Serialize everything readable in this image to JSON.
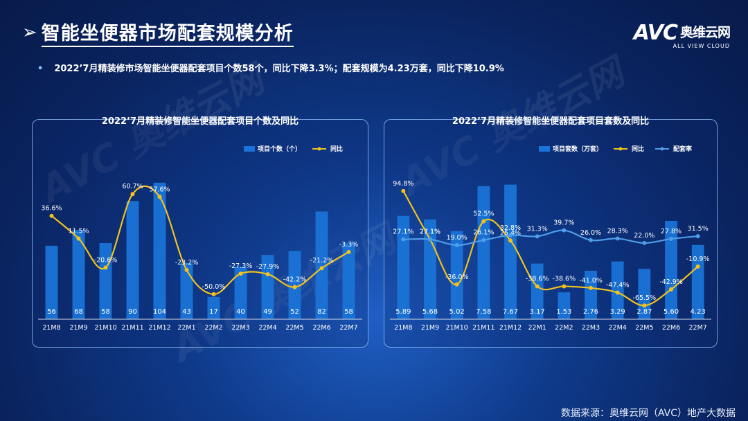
{
  "header": {
    "arrow": "➢",
    "title": "智能坐便器市场配套规模分析",
    "summary": "2022’7月精装修市场智能坐便器配套项目个数58个，同比下降3.3%；配套规模为4.23万套，同比下降10.9%"
  },
  "logo": {
    "main": "AVC",
    "cn": "奥维云网",
    "sub": "ALL VIEW CLOUD"
  },
  "watermark": {
    "main": "AVC 奥维云网",
    "sub": "ALL VIEW CLOUD"
  },
  "footer": {
    "source": "数据来源：奥维云网（AVC）地产大数据"
  },
  "colors": {
    "bar": "#1a73d6",
    "yoy_line": "#f2c21b",
    "ratio_line": "#4f9de8",
    "panel_border": "#96c8ff"
  },
  "chart_data": [
    {
      "type": "bar",
      "title": "2022’7月精装修智能坐便器配套项目个数及同比",
      "categories": [
        "21M8",
        "21M9",
        "21M10",
        "21M11",
        "21M12",
        "22M1",
        "22M2",
        "22M3",
        "22M4",
        "22M5",
        "22M6",
        "22M7"
      ],
      "legend_position": "top-right",
      "series": [
        {
          "name": "项目个数（个）",
          "kind": "bar",
          "values": [
            56,
            68,
            58,
            90,
            104,
            43,
            17,
            40,
            49,
            52,
            82,
            58
          ],
          "labels": [
            "56",
            "68",
            "58",
            "90",
            "104",
            "43",
            "17",
            "40",
            "49",
            "52",
            "82",
            "58"
          ]
        },
        {
          "name": "同比",
          "kind": "line",
          "values": [
            36.6,
            11.5,
            -20.6,
            60.7,
            57.6,
            -23.2,
            -50.0,
            -27.3,
            -27.9,
            -42.2,
            -21.2,
            -3.3
          ],
          "labels": [
            "36.6%",
            "11.5%",
            "-20.6%",
            "60.7%",
            "57.6%",
            "-23.2%",
            "-50.0%",
            "-27.3%",
            "-27.9%",
            "-42.2%",
            "-21.2%",
            "-3.3%"
          ]
        }
      ],
      "bar_ylim": [
        0,
        115
      ],
      "line_ylim": [
        -70,
        80
      ]
    },
    {
      "type": "bar",
      "title": "2022’7月精装修智能坐便器配套项目套数及同比",
      "categories": [
        "21M8",
        "21M9",
        "21M10",
        "21M11",
        "21M12",
        "22M1",
        "22M2",
        "22M3",
        "22M4",
        "22M5",
        "22M6",
        "22M7"
      ],
      "legend_position": "top-right",
      "series": [
        {
          "name": "项目套数（万套）",
          "kind": "bar",
          "values": [
            5.89,
            5.68,
            5.02,
            7.58,
            7.67,
            3.17,
            1.53,
            2.76,
            3.29,
            2.87,
            5.6,
            4.23
          ],
          "labels": [
            "5.89",
            "5.68",
            "5.02",
            "7.58",
            "7.67",
            "3.17",
            "1.53",
            "2.76",
            "3.29",
            "2.87",
            "5.60",
            "4.23"
          ]
        },
        {
          "name": "同比",
          "kind": "line",
          "values": [
            94.8,
            27.1,
            -36.0,
            52.5,
            25.4,
            -38.6,
            -38.6,
            -41.0,
            -47.4,
            -65.5,
            -42.9,
            -10.9
          ],
          "labels": [
            "94.8%",
            "27.1%",
            "-36.0%",
            "52.5%",
            "25.4%",
            "-38.6%",
            "-38.6%",
            "-41.0%",
            "-47.4%",
            "-65.5%",
            "-42.9%",
            "-10.9%"
          ]
        },
        {
          "name": "配套率",
          "kind": "line",
          "values": [
            27.1,
            27.1,
            19.0,
            26.1,
            32.8,
            31.3,
            39.7,
            26.0,
            28.3,
            22.0,
            27.8,
            31.5
          ],
          "labels": [
            "27.1%",
            "27.1%",
            "19.0%",
            "26.1%",
            "32.8%",
            "31.3%",
            "39.7%",
            "26.0%",
            "28.3%",
            "22.0%",
            "27.8%",
            "31.5%"
          ]
        }
      ],
      "bar_ylim": [
        0,
        8.6
      ],
      "line_ylim": [
        -75,
        115
      ]
    }
  ]
}
